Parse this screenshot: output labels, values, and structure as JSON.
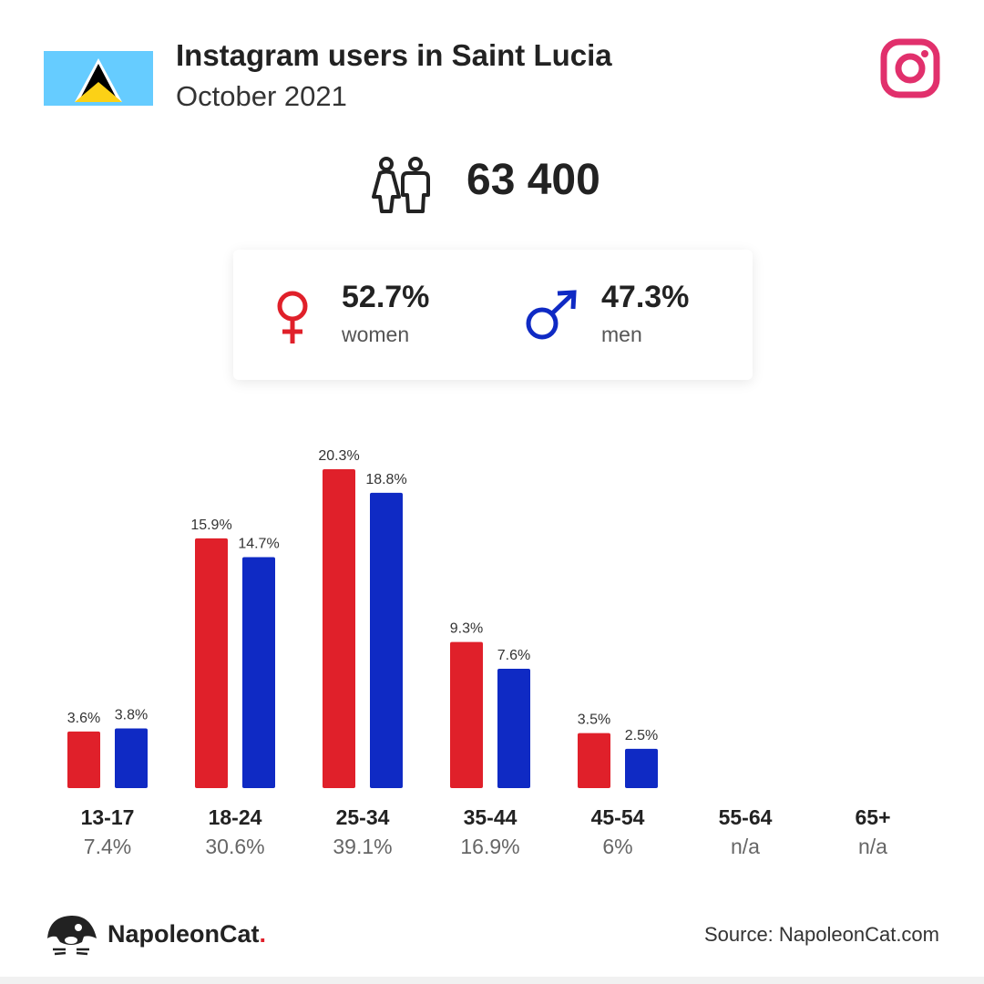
{
  "header": {
    "title": "Instagram users in Saint Lucia",
    "subtitle": "October 2021"
  },
  "total_users": "63 400",
  "gender": {
    "women": {
      "pct": "52.7%",
      "label": "women",
      "color": "#e0202a"
    },
    "men": {
      "pct": "47.3%",
      "label": "men",
      "color": "#0f2ac4"
    }
  },
  "chart_data": {
    "type": "bar",
    "categories": [
      "13-17",
      "18-24",
      "25-34",
      "35-44",
      "45-54",
      "55-64",
      "65+"
    ],
    "category_totals": [
      "7.4%",
      "30.6%",
      "39.1%",
      "16.9%",
      "6%",
      "n/a",
      "n/a"
    ],
    "series": [
      {
        "values": [
          3.6,
          15.9,
          20.3,
          9.3,
          3.5,
          null,
          null
        ],
        "labels": [
          "3.6%",
          "15.9%",
          "20.3%",
          "9.3%",
          "3.5%",
          "",
          ""
        ],
        "color": "#e0202a"
      },
      {
        "values": [
          3.8,
          14.7,
          18.8,
          7.6,
          2.5,
          null,
          null
        ],
        "labels": [
          "3.8%",
          "14.7%",
          "18.8%",
          "7.6%",
          "2.5%",
          "",
          ""
        ],
        "color": "#0f2ac4"
      }
    ],
    "ylim": [
      0,
      20.3
    ],
    "grid": false
  },
  "footer": {
    "brand": "NapoleonCat",
    "brand_dot": ".",
    "source": "Source: NapoleonCat.com"
  },
  "icons": {
    "flag": "saint-lucia-flag-icon",
    "instagram": "instagram-icon",
    "people": "people-icon",
    "female": "female-symbol-icon",
    "male": "male-symbol-icon",
    "brand": "napoleoncat-logo-icon"
  }
}
